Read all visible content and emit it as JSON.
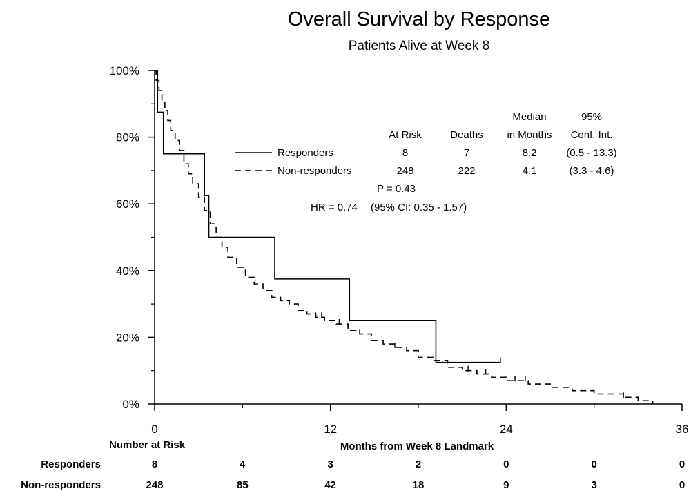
{
  "chart_data": {
    "type": "line",
    "title": "Overall Survival by Response",
    "subtitle": "Patients Alive at Week 8",
    "xlabel": "Months from Week 8 Landmark",
    "ylabel": "",
    "xlim": [
      0,
      36
    ],
    "ylim": [
      0,
      1
    ],
    "x_ticks": [
      0,
      12,
      24,
      36
    ],
    "x_tick_labels": [
      "0",
      "12",
      "24",
      "36"
    ],
    "x_minor_ticks": [
      6,
      18,
      30
    ],
    "y_ticks": [
      0,
      0.2,
      0.4,
      0.6,
      0.8,
      1.0
    ],
    "y_tick_labels": [
      "0%",
      "20%",
      "40%",
      "60%",
      "80%",
      "100%"
    ],
    "y_minor_ticks": [
      0.1,
      0.3,
      0.5,
      0.7,
      0.9
    ],
    "grid": false,
    "series": [
      {
        "name": "Responders",
        "line_style": "solid",
        "steps": [
          [
            0,
            1.0
          ],
          [
            0.2,
            0.875
          ],
          [
            0.6,
            0.75
          ],
          [
            3.4,
            0.625
          ],
          [
            3.7,
            0.5
          ],
          [
            8.2,
            0.375
          ],
          [
            13.3,
            0.25
          ],
          [
            19.2,
            0.125
          ],
          [
            23.6,
            0.125
          ]
        ],
        "censored_x": [
          23.6
        ]
      },
      {
        "name": "Non-responders",
        "line_style": "dashed",
        "steps": [
          [
            0,
            1.0
          ],
          [
            0.1,
            0.97
          ],
          [
            0.3,
            0.94
          ],
          [
            0.5,
            0.91
          ],
          [
            0.7,
            0.88
          ],
          [
            0.9,
            0.85
          ],
          [
            1.1,
            0.82
          ],
          [
            1.4,
            0.79
          ],
          [
            1.7,
            0.76
          ],
          [
            2.0,
            0.72
          ],
          [
            2.3,
            0.69
          ],
          [
            2.6,
            0.66
          ],
          [
            3.0,
            0.62
          ],
          [
            3.4,
            0.58
          ],
          [
            3.8,
            0.54
          ],
          [
            4.2,
            0.5
          ],
          [
            4.6,
            0.47
          ],
          [
            5.0,
            0.44
          ],
          [
            5.6,
            0.41
          ],
          [
            6.2,
            0.38
          ],
          [
            6.8,
            0.36
          ],
          [
            7.4,
            0.34
          ],
          [
            8.0,
            0.32
          ],
          [
            8.6,
            0.31
          ],
          [
            9.2,
            0.3
          ],
          [
            9.8,
            0.28
          ],
          [
            10.4,
            0.27
          ],
          [
            11.0,
            0.26
          ],
          [
            11.6,
            0.25
          ],
          [
            12.4,
            0.24
          ],
          [
            13.2,
            0.22
          ],
          [
            14.0,
            0.21
          ],
          [
            14.8,
            0.19
          ],
          [
            15.6,
            0.18
          ],
          [
            16.4,
            0.17
          ],
          [
            17.2,
            0.16
          ],
          [
            18.0,
            0.14
          ],
          [
            19.0,
            0.13
          ],
          [
            20.0,
            0.11
          ],
          [
            21.0,
            0.1
          ],
          [
            22.0,
            0.09
          ],
          [
            23.0,
            0.08
          ],
          [
            24.0,
            0.07
          ],
          [
            25.5,
            0.06
          ],
          [
            27.0,
            0.05
          ],
          [
            28.5,
            0.04
          ],
          [
            30.0,
            0.03
          ],
          [
            32.0,
            0.02
          ],
          [
            33.0,
            0.01
          ],
          [
            34.0,
            0.0
          ]
        ],
        "censored_x": [
          11.0,
          11.4,
          12.6,
          14.0,
          16.4,
          21.4,
          22.6,
          24.6,
          25.3,
          32.0
        ]
      }
    ],
    "legend": {
      "placement": "top-center",
      "headers": {
        "at_risk": "At Risk",
        "deaths": "Deaths",
        "median_line1": "Median",
        "median_line2": "in Months",
        "ci_line1": "95%",
        "ci_line2": "Conf. Int."
      },
      "rows": [
        {
          "label": "Responders",
          "at_risk": "8",
          "deaths": "7",
          "median": "8.2",
          "ci": "(0.5 - 13.3)"
        },
        {
          "label": "Non-responders",
          "at_risk": "248",
          "deaths": "222",
          "median": "4.1",
          "ci": "(3.3 - 4.6)"
        }
      ],
      "p_value": "P = 0.43",
      "hr": "HR = 0.74",
      "hr_ci": "(95%  CI: 0.35 - 1.57)"
    },
    "risk_table": {
      "title": "Number at Risk",
      "times": [
        0,
        6,
        12,
        18,
        24,
        30,
        36
      ],
      "rows": [
        {
          "label": "Responders",
          "counts": [
            "8",
            "4",
            "3",
            "2",
            "0",
            "0",
            "0"
          ]
        },
        {
          "label": "Non-responders",
          "counts": [
            "248",
            "85",
            "42",
            "18",
            "9",
            "3",
            "0"
          ]
        }
      ]
    }
  }
}
